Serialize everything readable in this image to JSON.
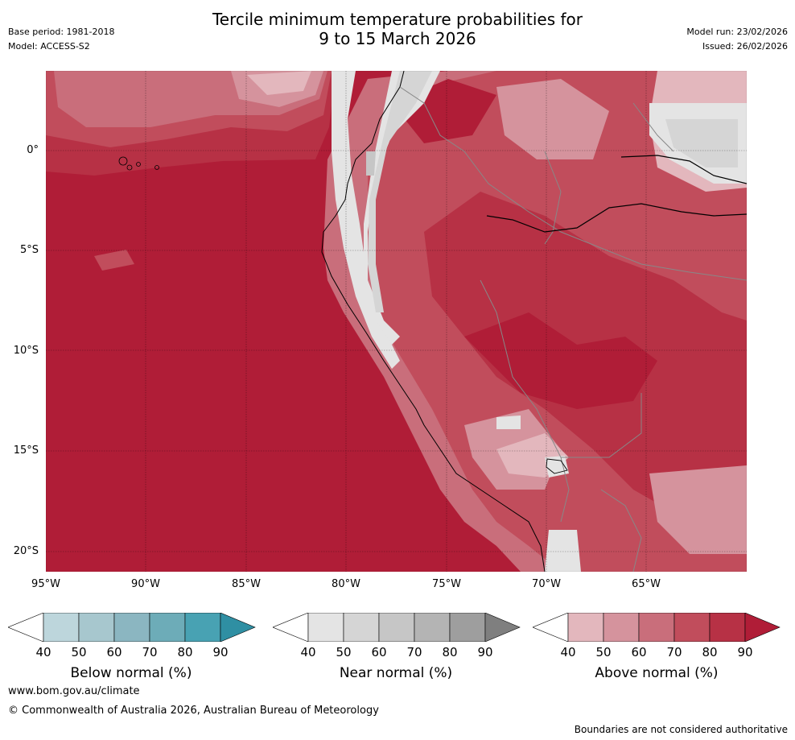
{
  "title": [
    "Tercile minimum temperature probabilities for",
    "9 to 15 March 2026"
  ],
  "meta_left": {
    "base_period": "Base period: 1981-2018",
    "model": "Model: ACCESS-S2"
  },
  "meta_right": {
    "model_run": "Model run: 23/02/2026",
    "issued": "Issued: 26/02/2026"
  },
  "latitude_labels": [
    "0°",
    "5°S",
    "10°S",
    "15°S",
    "20°S"
  ],
  "longitude_labels": [
    "95°W",
    "90°W",
    "85°W",
    "80°W",
    "75°W",
    "70°W",
    "65°W"
  ],
  "colorbars": [
    {
      "title": "Below normal (%)",
      "ticks": [
        "40",
        "50",
        "60",
        "70",
        "80",
        "90"
      ],
      "colors": [
        "#bdd6dc",
        "#a7c7ce",
        "#8bb6c1",
        "#6dacb8",
        "#48a2b3",
        "#2f8fa3"
      ]
    },
    {
      "title": "Near normal (%)",
      "ticks": [
        "40",
        "50",
        "60",
        "70",
        "80",
        "90"
      ],
      "colors": [
        "#e4e4e4",
        "#d5d5d5",
        "#c6c6c6",
        "#b4b4b4",
        "#9e9e9e",
        "#7f7f7f"
      ]
    },
    {
      "title": "Above normal (%)",
      "ticks": [
        "40",
        "50",
        "60",
        "70",
        "80",
        "90"
      ],
      "colors": [
        "#e3b7bd",
        "#d5939d",
        "#c96e7b",
        "#c14d5c",
        "#b73145",
        "#b01d37"
      ]
    }
  ],
  "map_colors": {
    "above_90": "#b01d37",
    "above_80": "#b73145",
    "above_70": "#c14d5c",
    "above_60": "#c96e7b",
    "above_50": "#d5939d",
    "above_40": "#e3b7bd",
    "near_40": "#e4e4e4",
    "near_50": "#d5d5d5",
    "near_60": "#c6c6c6",
    "near_70": "#b4b4b4"
  },
  "footer": {
    "url": "www.bom.gov.au/climate",
    "copyright": "© Commonwealth of Australia 2026, Australian Bureau of Meteorology",
    "note": "Boundaries are not considered authoritative"
  }
}
